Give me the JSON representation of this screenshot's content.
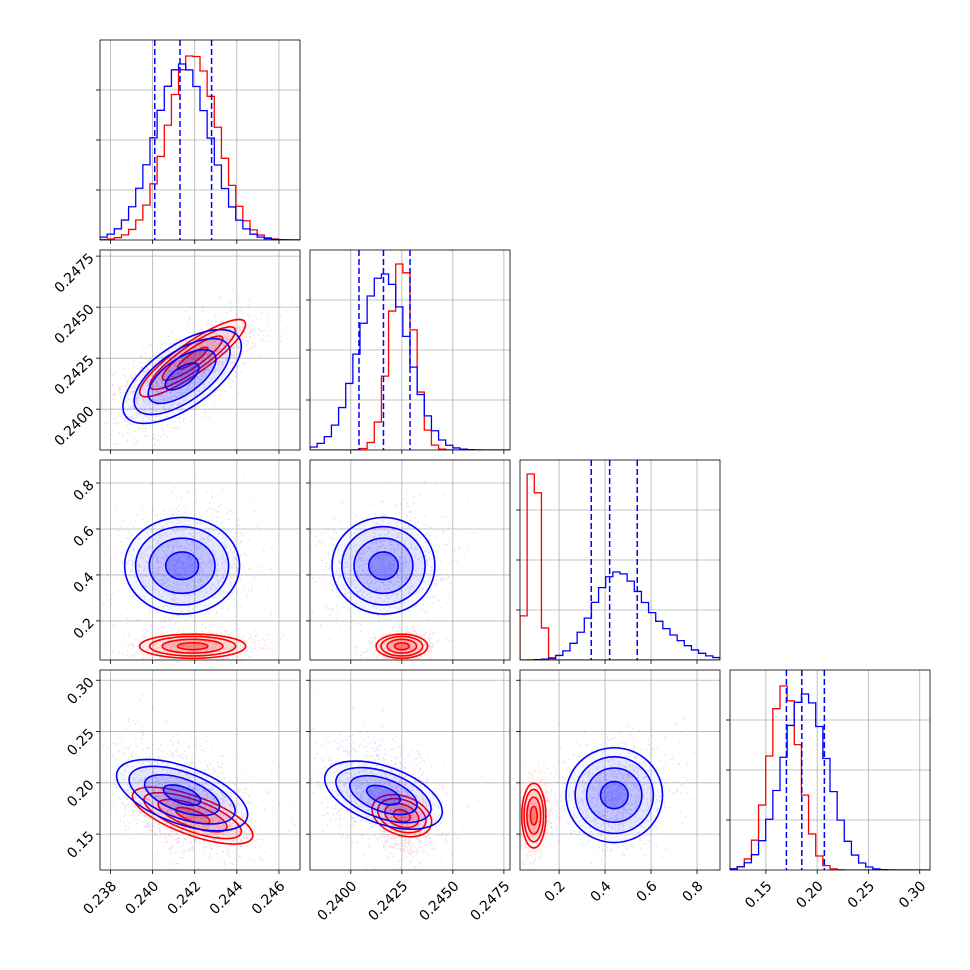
{
  "chart_data": {
    "type": "corner",
    "grid": true,
    "quantile_lines": [
      0.16,
      0.5,
      0.84
    ],
    "series": [
      {
        "name": "",
        "color": "#0000ff"
      },
      {
        "name": "",
        "color": "#ff0000"
      }
    ],
    "parameters": [
      {
        "range": [
          0.2375,
          0.247
        ],
        "ticks": [
          0.238,
          0.24,
          0.242,
          0.244,
          0.246
        ],
        "tick_labels": [
          "0.238",
          "0.240",
          "0.242",
          "0.244",
          "0.246"
        ],
        "blue": {
          "mean": 0.2414,
          "std": 0.0013,
          "quantiles": [
            0.2401,
            0.2413,
            0.2428
          ]
        },
        "red": {
          "mean": 0.2419,
          "std": 0.0012,
          "quantiles": null
        }
      },
      {
        "range": [
          0.238,
          0.2478
        ],
        "ticks": [
          0.24,
          0.2425,
          0.245,
          0.2475
        ],
        "tick_labels": [
          "0.2400",
          "0.2425",
          "0.2450",
          "0.2475"
        ],
        "blue": {
          "mean": 0.2416,
          "std": 0.0012,
          "quantiles": [
            0.2404,
            0.2416,
            0.2429
          ]
        },
        "red": {
          "mean": 0.2425,
          "std": 0.0006,
          "quantiles": null
        }
      },
      {
        "range": [
          0.03,
          0.9
        ],
        "ticks": [
          0.2,
          0.4,
          0.6,
          0.8
        ],
        "tick_labels": [
          "0.2",
          "0.4",
          "0.6",
          "0.8"
        ],
        "blue": {
          "mean": 0.44,
          "std": 0.1,
          "quantiles": [
            0.34,
            0.42,
            0.54
          ]
        },
        "red": {
          "mean": 0.09,
          "std": 0.025,
          "quantiles": null
        }
      },
      {
        "range": [
          0.115,
          0.31
        ],
        "ticks": [
          0.15,
          0.2,
          0.25,
          0.3
        ],
        "tick_labels": [
          "0.15",
          "0.20",
          "0.25",
          "0.30"
        ],
        "blue": {
          "mean": 0.188,
          "std": 0.022,
          "quantiles": [
            0.17,
            0.185,
            0.207
          ]
        },
        "red": {
          "mean": 0.168,
          "std": 0.015,
          "quantiles": null
        }
      }
    ]
  }
}
